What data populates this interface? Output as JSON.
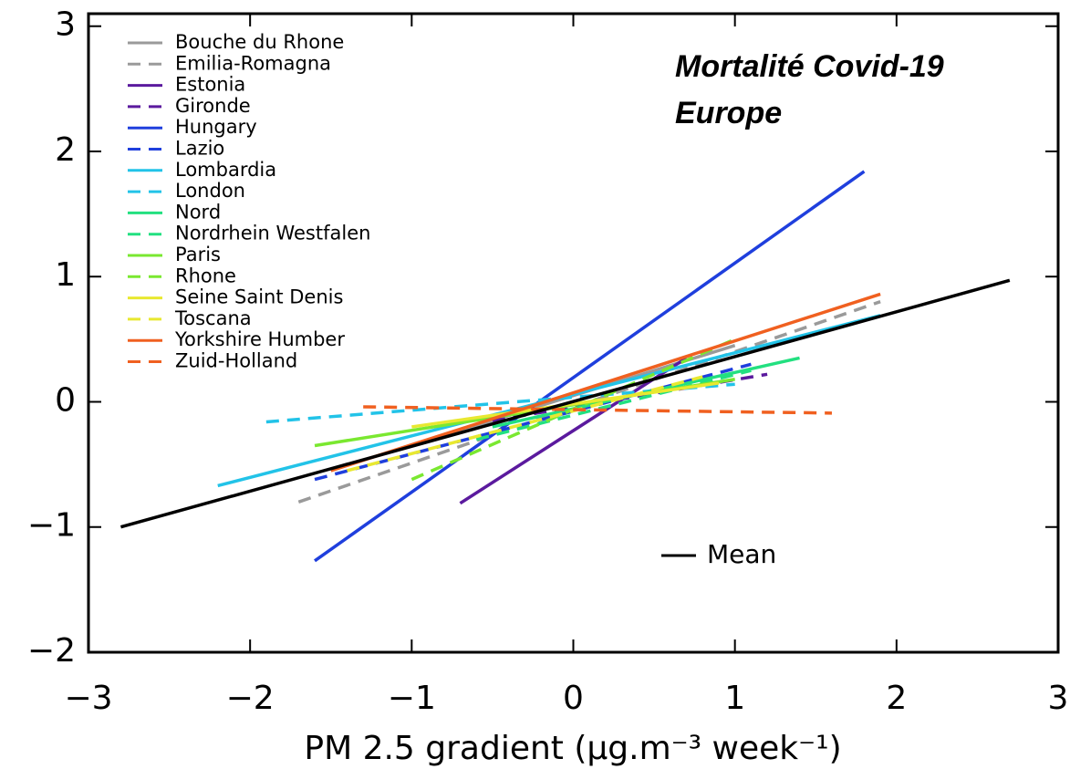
{
  "chart_data": {
    "type": "line",
    "title": "Mortalité Covid-19",
    "subtitle": "Europe",
    "xlabel": "PM 2.5 gradient (μg.m⁻³ week⁻¹)",
    "xlim": [
      -3,
      3
    ],
    "ylim": [
      -2,
      3.1
    ],
    "xticks": [
      {
        "value": -3,
        "label": "−3"
      },
      {
        "value": -2,
        "label": "−2"
      },
      {
        "value": -1,
        "label": "−1"
      },
      0,
      1,
      2,
      3
    ],
    "yticks": [
      {
        "value": -2,
        "label": "−2"
      },
      {
        "value": -1,
        "label": "−1"
      },
      0,
      1,
      2,
      3
    ],
    "series": [
      {
        "name": "Bouche du Rhone",
        "color": "#9a9a9a",
        "dashed": false,
        "x": [
          -1.0,
          1.0
        ],
        "values": [
          -0.35,
          0.45
        ]
      },
      {
        "name": "Emilia-Romagna",
        "color": "#9a9a9a",
        "dashed": true,
        "x": [
          -1.7,
          1.9
        ],
        "values": [
          -0.8,
          0.8
        ]
      },
      {
        "name": "Estonia",
        "color": "#5b1a9e",
        "dashed": false,
        "x": [
          -0.7,
          0.7
        ],
        "values": [
          -0.81,
          0.35
        ]
      },
      {
        "name": "Gironde",
        "color": "#5b1a9e",
        "dashed": true,
        "x": [
          -0.5,
          1.2
        ],
        "values": [
          -0.15,
          0.22
        ]
      },
      {
        "name": "Hungary",
        "color": "#1f3fdd",
        "dashed": false,
        "x": [
          -1.6,
          1.8
        ],
        "values": [
          -1.27,
          1.84
        ]
      },
      {
        "name": "Lazio",
        "color": "#1f3fdd",
        "dashed": true,
        "x": [
          -1.6,
          1.1
        ],
        "values": [
          -0.62,
          0.3
        ]
      },
      {
        "name": "Lombardia",
        "color": "#22c3e8",
        "dashed": false,
        "x": [
          -2.2,
          1.9
        ],
        "values": [
          -0.67,
          0.69
        ]
      },
      {
        "name": "London",
        "color": "#22c3e8",
        "dashed": true,
        "x": [
          -1.9,
          1.0
        ],
        "values": [
          -0.16,
          0.14
        ]
      },
      {
        "name": "Nord",
        "color": "#22e080",
        "dashed": false,
        "x": [
          -0.5,
          1.4
        ],
        "values": [
          -0.2,
          0.35
        ]
      },
      {
        "name": "Nordrhein Westfalen",
        "color": "#22e080",
        "dashed": true,
        "x": [
          -0.6,
          1.1
        ],
        "values": [
          -0.3,
          0.25
        ]
      },
      {
        "name": "Paris",
        "color": "#7ae830",
        "dashed": false,
        "x": [
          -1.6,
          1.0
        ],
        "values": [
          -0.35,
          0.18
        ]
      },
      {
        "name": "Rhone",
        "color": "#7ae830",
        "dashed": true,
        "x": [
          -1.0,
          1.0
        ],
        "values": [
          -0.62,
          0.5
        ]
      },
      {
        "name": "Seine Saint Denis",
        "color": "#e8e830",
        "dashed": false,
        "x": [
          -1.0,
          0.9
        ],
        "values": [
          -0.2,
          0.15
        ]
      },
      {
        "name": "Toscana",
        "color": "#e8e830",
        "dashed": true,
        "x": [
          -1.4,
          0.8
        ],
        "values": [
          -0.55,
          0.2
        ]
      },
      {
        "name": "Yorkshire Humber",
        "color": "#f06020",
        "dashed": false,
        "x": [
          -1.5,
          1.9
        ],
        "values": [
          -0.55,
          0.86
        ]
      },
      {
        "name": "Zuid-Holland",
        "color": "#f06020",
        "dashed": true,
        "x": [
          -1.3,
          1.6
        ],
        "values": [
          -0.04,
          -0.09
        ]
      },
      {
        "name": "Mean",
        "color": "#000000",
        "dashed": false,
        "x": [
          -2.8,
          2.7
        ],
        "values": [
          -1.0,
          0.97
        ]
      }
    ]
  }
}
